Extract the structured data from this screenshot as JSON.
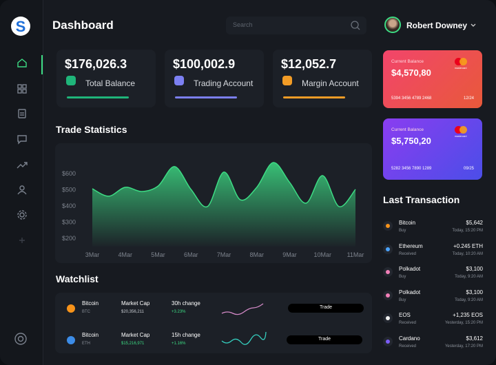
{
  "brand": {
    "logo": "S"
  },
  "header": {
    "title": "Dashboard",
    "search_placeholder": "Search",
    "user_name": "Robert Downey"
  },
  "stats": [
    {
      "value": "$176,026.3",
      "label": "Total Balance",
      "color": "#1fb57a"
    },
    {
      "value": "$100,002.9",
      "label": "Trading Account",
      "color": "#7c80f2"
    },
    {
      "value": "$12,052.7",
      "label": "Margin Account",
      "color": "#f29c26"
    }
  ],
  "cards": [
    {
      "label": "Current Balance",
      "balance": "$4,570,80",
      "number": "5394 3456 4789 2468",
      "expiry": "12/24",
      "brand": "mastercard"
    },
    {
      "label": "Current Balance",
      "balance": "$5,750,20",
      "number": "5282 3456 7890 1289",
      "expiry": "09/25",
      "brand": "mastercard"
    }
  ],
  "trade_statistics": {
    "title": "Trade Statistics",
    "chart_data": {
      "type": "area",
      "color": "#3ddc84",
      "grid": false,
      "categories": [
        "3Mar",
        null,
        "4Mar",
        null,
        "5Mar",
        null,
        "6Mar",
        null,
        "7Mar",
        null,
        "8Mar",
        null,
        "9Mar",
        null,
        "10Mar",
        null,
        "11Mar"
      ],
      "values": [
        506,
        460,
        515,
        489,
        523,
        643,
        502,
        396,
        609,
        438,
        515,
        668,
        545,
        417,
        587,
        396,
        502
      ],
      "ylim": [
        150,
        700
      ],
      "yticks": [
        {
          "value": 200,
          "label": "$200"
        },
        {
          "value": 300,
          "label": "$300"
        },
        {
          "value": 400,
          "label": "$400"
        },
        {
          "value": 500,
          "label": "$500"
        },
        {
          "value": 600,
          "label": "$600"
        }
      ]
    }
  },
  "watchlist": {
    "title": "Watchlist",
    "rows": [
      {
        "name": "Bitcoin",
        "symbol": "BTC",
        "cap_label": "Market Cap",
        "cap": "$20,356,211",
        "change_label": "30h change",
        "change": "+3.23%",
        "action": "Trade",
        "color": "#f7931a"
      },
      {
        "name": "Bitcoin",
        "symbol": "ETH",
        "cap_label": "Market Cap",
        "cap": "$15,216,971",
        "change_label": "15h change",
        "change": "+1.16%",
        "action": "Trade",
        "color": "#3c8ce7"
      }
    ]
  },
  "transactions": {
    "title": "Last Transaction",
    "rows": [
      {
        "name": "Bitcoin",
        "kind": "Buy",
        "amount": "$5,642",
        "time": "Today, 15:20 PM",
        "color": "#f7931a"
      },
      {
        "name": "Ethereum",
        "kind": "Received",
        "amount": "+0.245 ETH",
        "time": "Today, 10:20 AM",
        "color": "#4aa3ff"
      },
      {
        "name": "Polkadot",
        "kind": "Buy",
        "amount": "$3,100",
        "time": "Today, 9:20 AM",
        "color": "#f27fb8"
      },
      {
        "name": "Polkadot",
        "kind": "Buy",
        "amount": "$3,100",
        "time": "Today, 9:20 AM",
        "color": "#f27fb8"
      },
      {
        "name": "EOS",
        "kind": "Received",
        "amount": "+1,235 EOS",
        "time": "Yesterday, 15:20 PM",
        "color": "#f0f0f0"
      },
      {
        "name": "Cardano",
        "kind": "Received",
        "amount": "$3,612",
        "time": "Yesterday, 17:20 PM",
        "color": "#7b5cf5"
      }
    ]
  }
}
